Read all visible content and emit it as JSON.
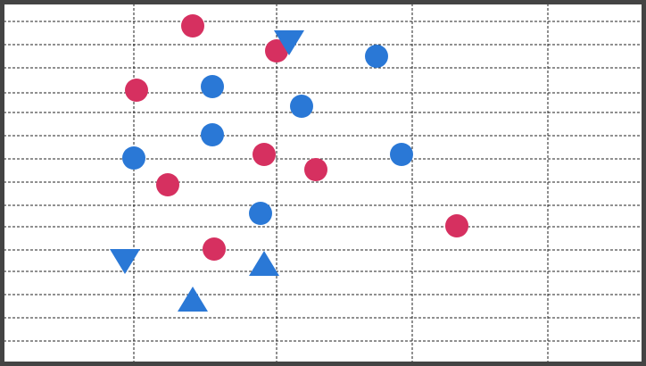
{
  "board": {
    "pieces": [
      {
        "shape": "circle",
        "color": "#d63060"
      },
      {
        "shape": "circle",
        "color": "#d63060"
      },
      {
        "shape": "circle",
        "color": "#d63060"
      },
      {
        "shape": "circle",
        "color": "#d63060"
      },
      {
        "shape": "circle",
        "color": "#d63060"
      },
      {
        "shape": "circle",
        "color": "#d63060"
      },
      {
        "shape": "circle",
        "color": "#d63060"
      },
      {
        "shape": "circle",
        "color": "#d63060"
      },
      {
        "shape": "circle",
        "color": "#2a78d6"
      },
      {
        "shape": "circle",
        "color": "#2a78d6"
      },
      {
        "shape": "circle",
        "color": "#2a78d6"
      },
      {
        "shape": "circle",
        "color": "#2a78d6"
      },
      {
        "shape": "circle",
        "color": "#2a78d6"
      },
      {
        "shape": "circle",
        "color": "#2a78d6"
      },
      {
        "shape": "circle",
        "color": "#2a78d6"
      },
      {
        "shape": "triangle-down",
        "color": "#2a78d6"
      },
      {
        "shape": "triangle-down",
        "color": "#2a78d6"
      },
      {
        "shape": "triangle-up",
        "color": "#2a78d6"
      },
      {
        "shape": "triangle-up",
        "color": "#2a78d6"
      }
    ]
  }
}
